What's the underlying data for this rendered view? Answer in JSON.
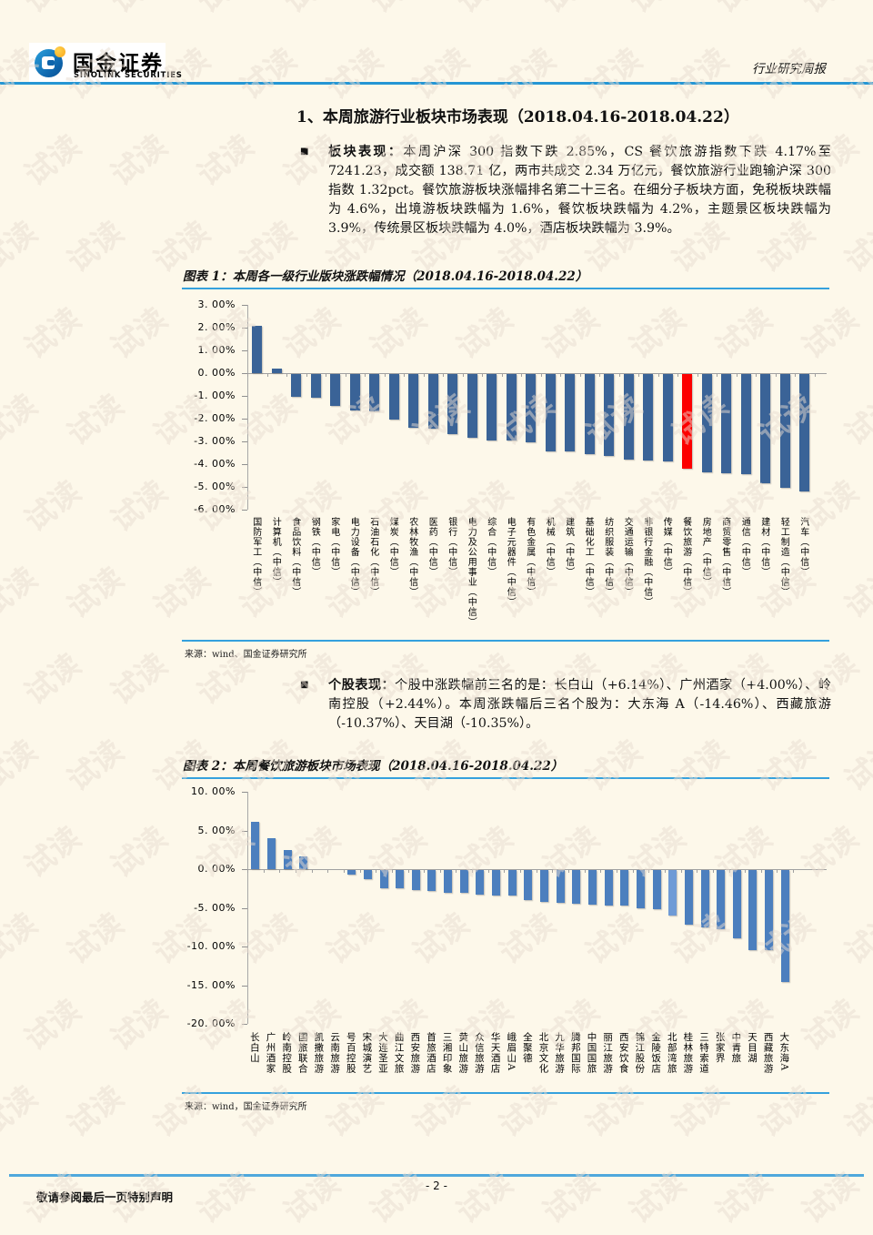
{
  "watermark": {
    "text": "试读"
  },
  "header": {
    "brand_cn": "国金证券",
    "brand_en": "SINOLINK SECURITIES",
    "report_type": "行业研究周报"
  },
  "section": {
    "title": "1、本周旅游行业板块市场表现（2018.04.16-2018.04.22）"
  },
  "bullets": [
    {
      "lead": "板块表现：",
      "text": "本周沪深 300 指数下跌 2.85%，CS 餐饮旅游指数下跌 4.17%至 7241.23，成交额 138.71 亿，两市共成交 2.34 万亿元，餐饮旅游行业跑输沪深 300 指数 1.32pct。餐饮旅游板块涨幅排名第二十三名。在细分子板块方面，免税板块跌幅为 4.6%，出境游板块跌幅为 1.6%，餐饮板块跌幅为 4.2%，主题景区板块跌幅为 3.9%，传统景区板块跌幅为 4.0%，酒店板块跌幅为 3.9%。"
    },
    {
      "lead": "个股表现：",
      "text": "个股中涨跌幅前三名的是：长白山（+6.14%）、广州酒家（+4.00%）、岭南控股（+2.44%）。本周涨跌幅后三名个股为：大东海 A（-14.46%）、西藏旅游（-10.37%）、天目湖（-10.35%）。"
    }
  ],
  "figures": [
    {
      "caption": "图表 1：本周各一级行业版块涨跌幅情况（2018.04.16-2018.04.22）",
      "source": "来源：wind、国金证券研究所"
    },
    {
      "caption": "图表 2：本周餐饮旅游板块市场表现（2018.04.16-2018.04.22）",
      "source": "来源：wind，国金证券研究所"
    }
  ],
  "footer": {
    "page_number": "- 2 -",
    "note": "敬请参阅最后一页特别声明"
  },
  "colors": {
    "accent_blue_line": "#35a1dd",
    "chart1_bar": "#3a6397",
    "chart1_highlight": "#fc0000",
    "chart2_bar": "#4c7fbe",
    "chart2_highlight": "#6f9bd6",
    "page_background": "#fdf8ea"
  },
  "chart_data": [
    {
      "type": "bar",
      "title": "本周各一级行业版块涨跌幅情况（2018.04.16-2018.04.22）",
      "xlabel": "",
      "ylabel": "",
      "ylim": [
        -6,
        3
      ],
      "ytick_step": 1,
      "yticks": [
        "3. 00%",
        "2. 00%",
        "1. 00%",
        "0. 00%",
        "-1. 00%",
        "-2. 00%",
        "-3. 00%",
        "-4. 00%",
        "-5. 00%",
        "-6. 00%"
      ],
      "grid": false,
      "legend": "none",
      "categories": [
        "国防军工（中信）",
        "计算机（中信）",
        "食品饮料（中信）",
        "钢铁（中信）",
        "家电（中信）",
        "电力设备（中信）",
        "石油石化（中信）",
        "煤炭（中信）",
        "农林牧渔（中信）",
        "医药（中信）",
        "银行（中信）",
        "电力及公用事业（中信）",
        "综合（中信）",
        "电子元器件（中信）",
        "有色金属（中信）",
        "机械（中信）",
        "建筑（中信）",
        "基础化工（中信）",
        "纺织服装（中信）",
        "交通运输（中信）",
        "非银行金融（中信）",
        "传媒（中信）",
        "餐饮旅游（中信）",
        "房地产（中信）",
        "商贸零售（中信）",
        "通信（中信）",
        "建材（中信）",
        "轻工制造（中信）",
        "汽车（中信）"
      ],
      "values": [
        2.1,
        0.2,
        -1.0,
        -1.05,
        -1.4,
        -1.6,
        -1.65,
        -2.0,
        -2.35,
        -2.4,
        -2.65,
        -2.8,
        -2.9,
        -2.9,
        -3.0,
        -3.4,
        -3.4,
        -3.5,
        -3.6,
        -3.75,
        -3.8,
        -3.85,
        -4.17,
        -4.3,
        -4.35,
        -4.4,
        -4.8,
        -5.0,
        -5.15
      ],
      "highlight": {
        "index": 22,
        "category": "餐饮旅游（中信）",
        "value": -4.17
      }
    },
    {
      "type": "bar",
      "title": "本周餐饮旅游板块市场表现（2018.04.16-2018.04.22）",
      "xlabel": "",
      "ylabel": "",
      "ylim": [
        -20,
        10
      ],
      "ytick_step": 5,
      "yticks": [
        "10. 00%",
        "5. 00%",
        "0. 00%",
        "-5. 00%",
        "-10. 00%",
        "-15. 00%",
        "-20. 00%"
      ],
      "grid": false,
      "legend": "none",
      "categories": [
        "长白山",
        "广州酒家",
        "岭南控股",
        "国旅联合",
        "凯撒旅游",
        "云南旅游",
        "号百控股",
        "宋城演艺",
        "大连圣亚",
        "曲江文旅",
        "西安旅游",
        "首旅酒店",
        "三湘印象",
        "黄山旅游",
        "众信旅游",
        "华天酒店",
        "峨眉山A",
        "全聚德",
        "北京文化",
        "九华旅游",
        "腾邦国际",
        "中国国旅",
        "丽江旅游",
        "西安饮食",
        "锦江股份",
        "金陵饭店",
        "北部湾旅",
        "桂林旅游",
        "三特索道",
        "张家界",
        "中青旅",
        "天目湖",
        "西藏旅游",
        "大东海A"
      ],
      "values": [
        6.14,
        4.0,
        2.44,
        1.6,
        0.0,
        0.0,
        -0.6,
        -1.2,
        -2.3,
        -2.4,
        -2.55,
        -2.7,
        -2.95,
        -2.95,
        -3.2,
        -3.25,
        -3.3,
        -3.85,
        -4.1,
        -4.25,
        -4.4,
        -4.5,
        -4.55,
        -4.6,
        -4.9,
        -5.0,
        -5.9,
        -7.0,
        -7.4,
        -7.7,
        -8.85,
        -10.35,
        -10.37,
        -14.46
      ],
      "highlight": {
        "index": 26,
        "category": "北部湾旅",
        "value": -5.9
      }
    }
  ]
}
